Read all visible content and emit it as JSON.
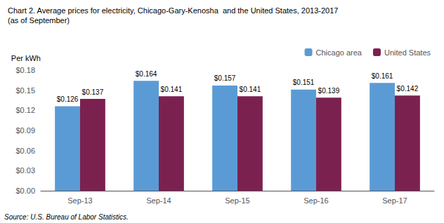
{
  "chart_data": {
    "type": "bar",
    "title": "Chart 2. Average prices for electricity, Chicago-Gary-Kenosha  and the United States, 2013-2017",
    "subtitle": "(as of September)",
    "ylabel": "Per kWh",
    "source": "Source: U.S. Bureau of Labor Statistics.",
    "categories": [
      "Sep-13",
      "Sep-14",
      "Sep-15",
      "Sep-16",
      "Sep-17"
    ],
    "series": [
      {
        "name": "Chicago area",
        "color": "#5B9BD5",
        "values": [
          0.126,
          0.164,
          0.157,
          0.151,
          0.161
        ],
        "value_labels": [
          "$0.126",
          "$0.164",
          "$0.157",
          "$0.151",
          "$0.161"
        ]
      },
      {
        "name": "United States",
        "color": "#7B2150",
        "values": [
          0.137,
          0.141,
          0.141,
          0.139,
          0.142
        ],
        "value_labels": [
          "$0.137",
          "$0.141",
          "$0.141",
          "$0.139",
          "$0.142"
        ]
      }
    ],
    "ylim": [
      0,
      0.18
    ],
    "yticks": [
      {
        "value": 0.0,
        "label": "$0.00"
      },
      {
        "value": 0.03,
        "label": "$0.03"
      },
      {
        "value": 0.06,
        "label": "$0.06"
      },
      {
        "value": 0.09,
        "label": "$0.09"
      },
      {
        "value": 0.12,
        "label": "$0.12"
      },
      {
        "value": 0.15,
        "label": "$0.15"
      },
      {
        "value": 0.18,
        "label": "$0.18"
      }
    ],
    "data_labels": true,
    "legend": "upper right",
    "grid": false
  }
}
